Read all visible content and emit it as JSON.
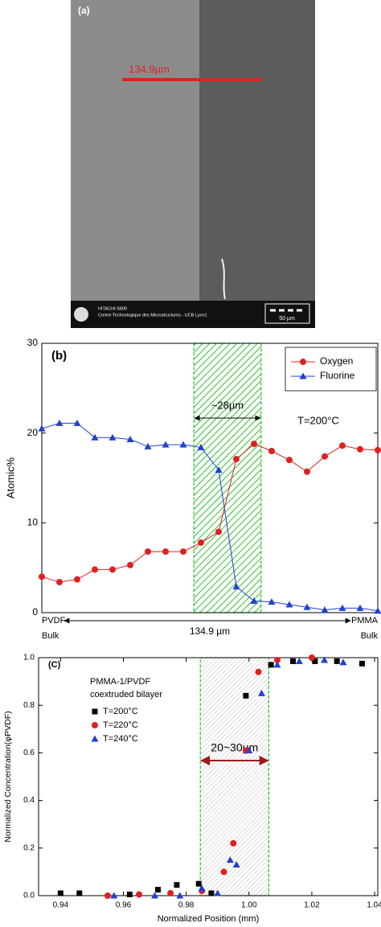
{
  "sem_image": {
    "label": "(a)",
    "measure": "134.9µm",
    "instrument": "HITACHI S800",
    "lab": "Centre Technologique des Microstructures - UCB Lyon1",
    "scale_bar": "50 µm"
  },
  "chart_data": [
    {
      "type": "line",
      "panel_label": "(b)",
      "y_label": "Atomic%",
      "x": [
        0,
        1,
        2,
        3,
        4,
        5,
        6,
        7,
        8,
        9,
        10,
        11,
        12,
        13,
        14,
        15,
        16,
        17,
        18,
        19
      ],
      "xlim": [
        0,
        19
      ],
      "ylim": [
        0,
        30
      ],
      "yticks": [
        0,
        10,
        20,
        30
      ],
      "legend": "upper right",
      "series": [
        {
          "name": "Oxygen",
          "color": "#e02020",
          "marker": "circle",
          "values": [
            4.0,
            3.4,
            3.7,
            4.8,
            4.8,
            5.3,
            6.8,
            6.8,
            6.8,
            7.8,
            9.0,
            17.1,
            18.8,
            18.0,
            17.0,
            15.7,
            17.4,
            18.6,
            18.2,
            18.1
          ]
        },
        {
          "name": "Fluorine",
          "color": "#2040d0",
          "marker": "triangle",
          "values": [
            20.5,
            21.1,
            21.1,
            19.5,
            19.5,
            19.3,
            18.5,
            18.7,
            18.7,
            18.4,
            15.9,
            2.9,
            1.3,
            1.2,
            0.9,
            0.6,
            0.3,
            0.5,
            0.5,
            0.2
          ]
        }
      ],
      "highlight": {
        "xlim": [
          8.6,
          12.4
        ],
        "color": "#2cc02c",
        "label": "~28µm"
      },
      "annotation": "T=200°C",
      "left_labels": [
        "PVDF",
        "Bulk"
      ],
      "right_labels": [
        "PMMA",
        "Bulk"
      ],
      "span_label": "134.9 µm"
    },
    {
      "type": "scatter",
      "panel_label": "(C)",
      "x_label": "Normalized Position (mm)",
      "y_label": "Normalized Concentration(φPVDF)",
      "xlim": [
        0.933,
        1.041
      ],
      "xticks": [
        0.94,
        0.96,
        0.98,
        {
          "value": 1.0,
          "label": "1.00"
        },
        1.02,
        1.04
      ],
      "ylim": [
        0,
        1
      ],
      "yticks": [
        {
          "value": 0,
          "label": "0.0"
        },
        0.2,
        0.4,
        0.6,
        0.8,
        {
          "value": 1,
          "label": "1.0"
        }
      ],
      "legend_title": [
        "PMMA-1/PVDF",
        "coextruded bilayer"
      ],
      "legend": "upper left",
      "series": [
        {
          "name": "T=200°C",
          "color": "#000000",
          "marker": "square",
          "x": [
            0.94,
            0.946,
            0.962,
            0.971,
            0.977,
            0.984,
            0.988,
            0.999,
            1.007,
            1.014,
            1.021,
            1.028,
            1.036
          ],
          "values": [
            0.01,
            0.01,
            0.005,
            0.025,
            0.045,
            0.05,
            0.01,
            0.84,
            0.97,
            0.985,
            0.985,
            0.985,
            0.975
          ]
        },
        {
          "name": "T=220°C",
          "color": "#e02020",
          "marker": "circle",
          "x": [
            0.955,
            0.965,
            0.975,
            0.985,
            0.992,
            0.995,
            0.999,
            1.003,
            1.009,
            1.02
          ],
          "values": [
            0.0,
            0.005,
            0.01,
            0.02,
            0.1,
            0.22,
            0.61,
            0.94,
            0.99,
            1.0
          ]
        },
        {
          "name": "T=240°C",
          "color": "#2040d0",
          "marker": "triangle",
          "x": [
            0.957,
            0.97,
            0.978,
            0.985,
            0.99,
            0.994,
            0.996,
            1.0,
            1.004,
            1.009,
            1.016,
            1.024,
            1.03
          ],
          "values": [
            0.0,
            0.0,
            0.0,
            0.03,
            0.01,
            0.15,
            0.13,
            0.61,
            0.85,
            0.97,
            0.985,
            0.99,
            0.98
          ]
        }
      ],
      "highlight": {
        "xlim": [
          0.9845,
          1.0063
        ],
        "color": "#2cc02c",
        "label": "20~30µm"
      }
    }
  ]
}
